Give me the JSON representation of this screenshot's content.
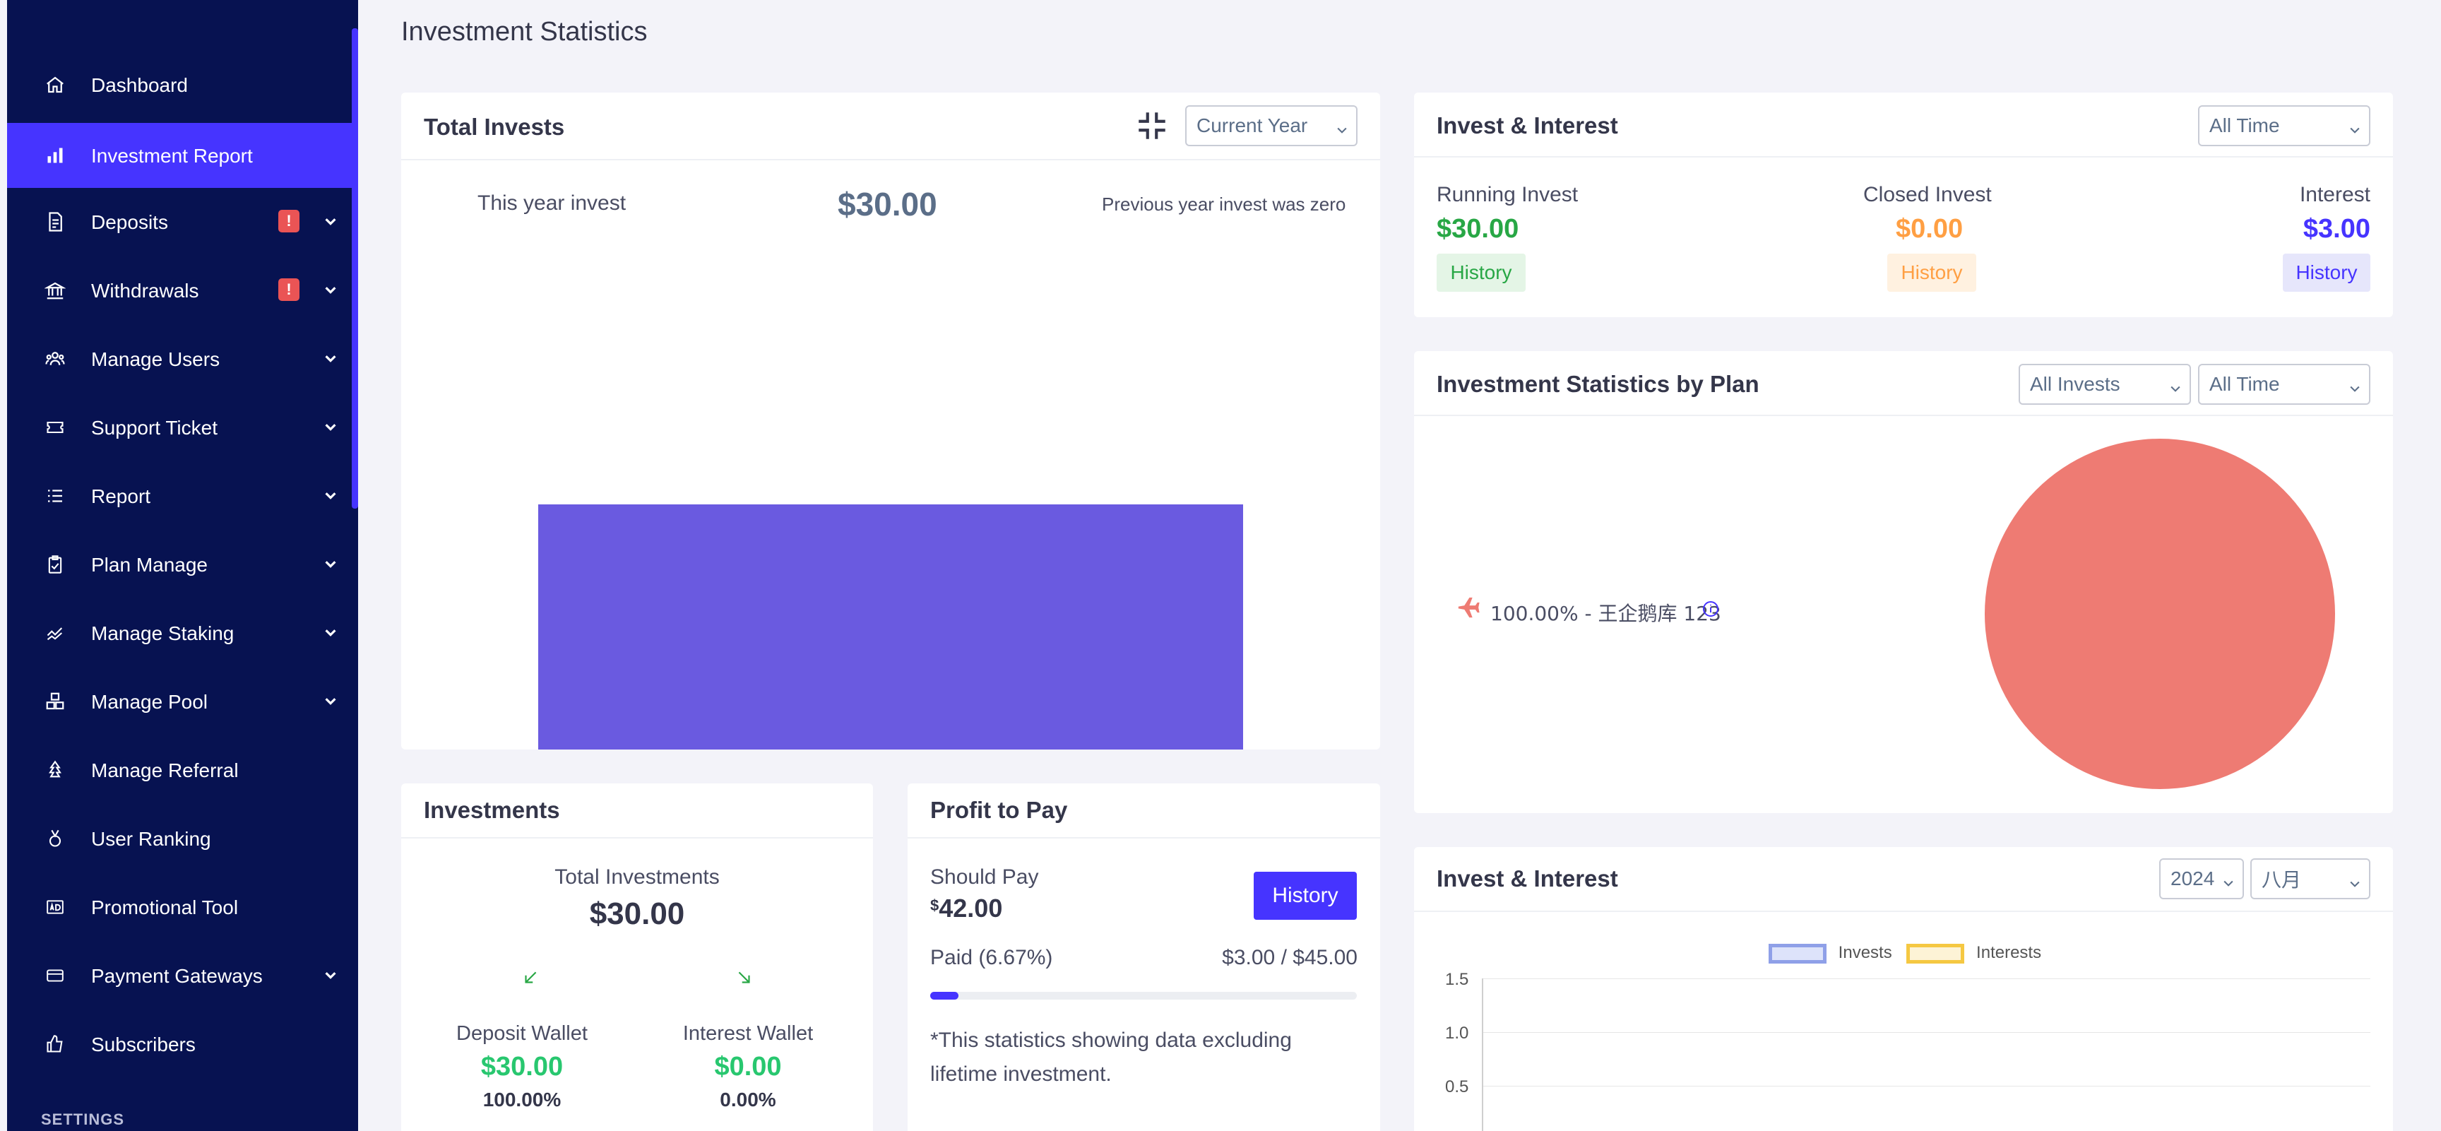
{
  "sidebar": {
    "items": [
      {
        "label": "Dashboard",
        "icon": "home-icon"
      },
      {
        "label": "Investment Report",
        "icon": "bar-chart-icon",
        "active": true
      },
      {
        "label": "Deposits",
        "icon": "receipt-icon",
        "badge": "!",
        "has_children": true
      },
      {
        "label": "Withdrawals",
        "icon": "bank-icon",
        "badge": "!",
        "has_children": true
      },
      {
        "label": "Manage Users",
        "icon": "users-icon",
        "has_children": true
      },
      {
        "label": "Support Ticket",
        "icon": "ticket-icon",
        "has_children": true
      },
      {
        "label": "Report",
        "icon": "list-icon",
        "has_children": true
      },
      {
        "label": "Plan Manage",
        "icon": "clipboard-icon",
        "has_children": true
      },
      {
        "label": "Manage Staking",
        "icon": "chart-line-icon",
        "has_children": true
      },
      {
        "label": "Manage Pool",
        "icon": "cubes-icon",
        "has_children": true
      },
      {
        "label": "Manage Referral",
        "icon": "tree-icon"
      },
      {
        "label": "User Ranking",
        "icon": "medal-icon"
      },
      {
        "label": "Promotional Tool",
        "icon": "ad-icon"
      },
      {
        "label": "Payment Gateways",
        "icon": "credit-card-icon",
        "has_children": true
      },
      {
        "label": "Subscribers",
        "icon": "thumbs-up-icon"
      }
    ],
    "section_settings": "SETTINGS"
  },
  "page": {
    "title": "Investment Statistics"
  },
  "total_invests": {
    "title": "Total Invests",
    "period_select": "Current Year",
    "this_year_label": "This year invest",
    "this_year_value": "$30.00",
    "previous_note": "Previous year invest was zero",
    "colors": {
      "bar": "#6a5ae0"
    }
  },
  "invest_interest_summary": {
    "title": "Invest & Interest",
    "period_select": "All Time",
    "running": {
      "label": "Running Invest",
      "value": "$30.00",
      "button": "History",
      "color": "#28a745"
    },
    "closed": {
      "label": "Closed Invest",
      "value": "$0.00",
      "button": "History",
      "color": "#ff9f43"
    },
    "interest": {
      "label": "Interest",
      "value": "$3.00",
      "button": "History",
      "color": "#4634ff"
    }
  },
  "stats_by_plan": {
    "title": "Investment Statistics by Plan",
    "invest_select": "All Invests",
    "period_select": "All Time",
    "legend_text": "100.00% - 王企鹅库 123",
    "pie_color": "#ee7b73"
  },
  "investments": {
    "title": "Investments",
    "total_label": "Total Investments",
    "total_value": "$30.00",
    "deposit_wallet": {
      "label": "Deposit Wallet",
      "value": "$30.00",
      "percent": "100.00%"
    },
    "interest_wallet": {
      "label": "Interest Wallet",
      "value": "$0.00",
      "percent": "0.00%"
    }
  },
  "profit_to_pay": {
    "title": "Profit to Pay",
    "should_pay_label": "Should Pay",
    "should_pay_currency": "$",
    "should_pay_amount": "42.00",
    "history_button": "History",
    "paid_label": "Paid (6.67%)",
    "paid_ratio": "$3.00 / $45.00",
    "progress": 0.0667,
    "note": "*This statistics showing data excluding lifetime investment."
  },
  "invest_interest_chart": {
    "title": "Invest & Interest",
    "year_select": "2024",
    "month_select": "八月",
    "legend": [
      {
        "label": "Invests",
        "color": "#8fa0e8"
      },
      {
        "label": "Interests",
        "color": "#f5c842"
      }
    ],
    "y_ticks": [
      "1.5",
      "1.0",
      "0.5"
    ]
  },
  "chart_data": [
    {
      "type": "bar",
      "title": "Total Invests",
      "categories": [
        "Current Year"
      ],
      "values": [
        30
      ],
      "color": "#6a5ae0"
    },
    {
      "type": "pie",
      "title": "Investment Statistics by Plan",
      "labels": [
        "王企鹅库 123"
      ],
      "values": [
        100
      ],
      "color": "#ee7b73"
    },
    {
      "type": "line",
      "title": "Invest & Interest",
      "series": [
        {
          "name": "Invests",
          "values": []
        },
        {
          "name": "Interests",
          "values": []
        }
      ],
      "y_ticks": [
        1.5,
        1.0,
        0.5
      ]
    }
  ]
}
